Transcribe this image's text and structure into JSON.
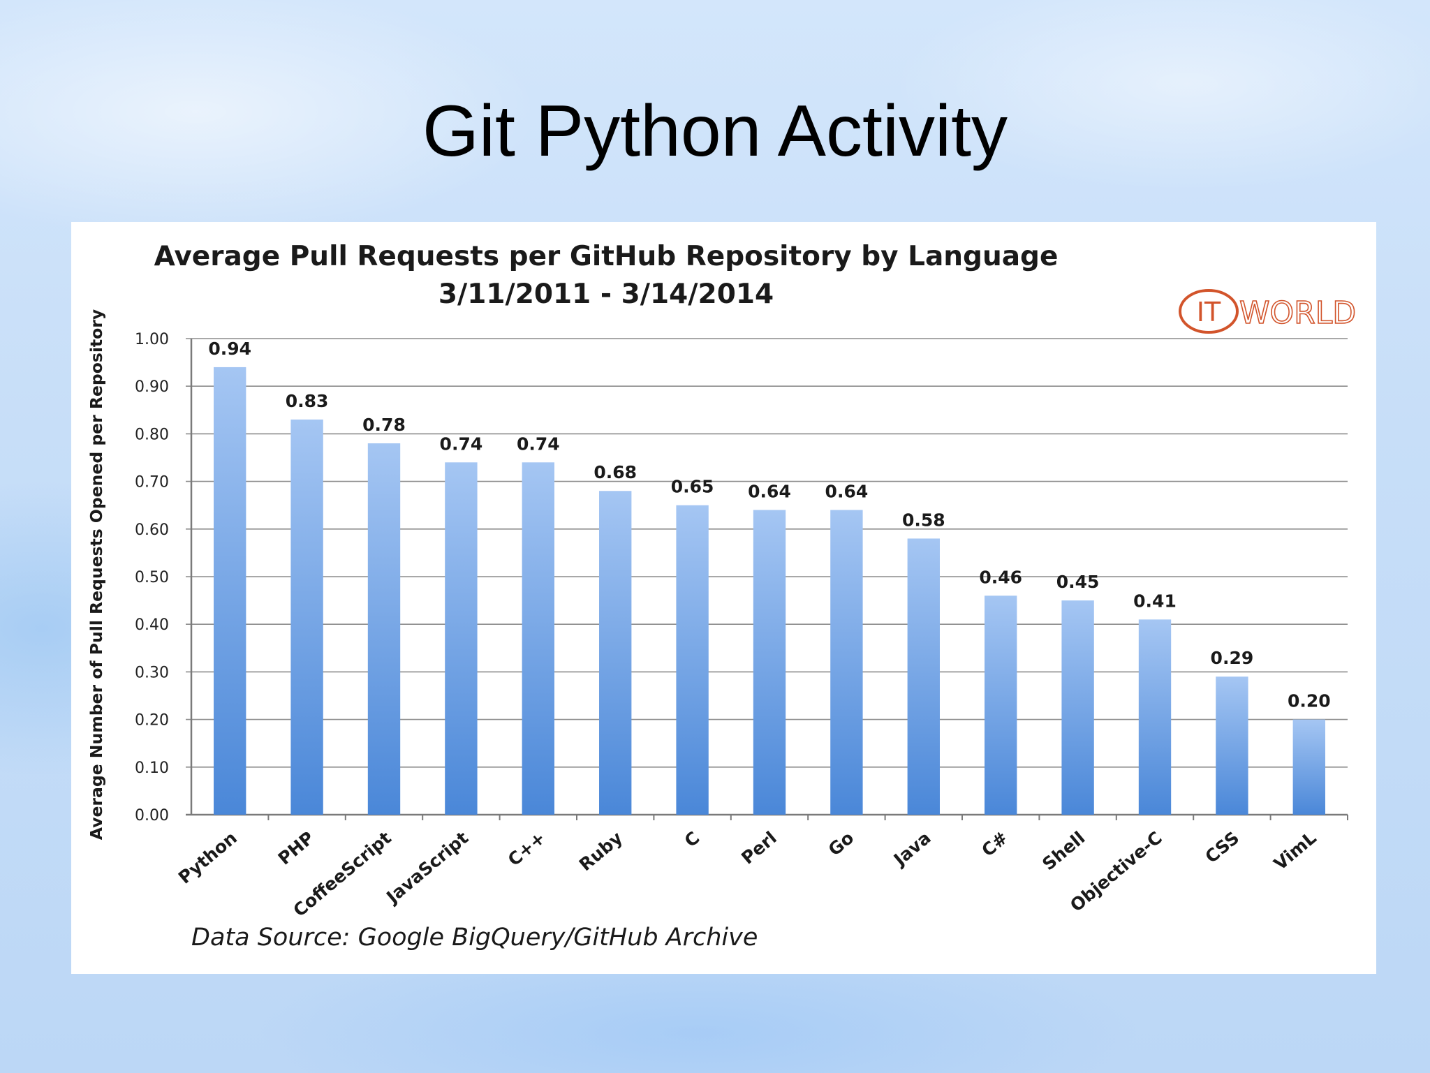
{
  "slide": {
    "title": "Git Python Activity"
  },
  "logo": {
    "it": "IT",
    "world": "WORLD",
    "color": "#d2542b"
  },
  "chart_data": {
    "type": "bar",
    "title": "Average Pull Requests per GitHub Repository by Language",
    "subtitle": "3/11/2011 - 3/14/2014",
    "xlabel": "",
    "ylabel": "Average Number of Pull Requests Opened per Repository",
    "ylim": [
      0,
      1.0
    ],
    "yticks": [
      "0.00",
      "0.10",
      "0.20",
      "0.30",
      "0.40",
      "0.50",
      "0.60",
      "0.70",
      "0.80",
      "0.90",
      "1.00"
    ],
    "grid": true,
    "categories": [
      "Python",
      "PHP",
      "CoffeeScript",
      "JavaScript",
      "C++",
      "Ruby",
      "C",
      "Perl",
      "Go",
      "Java",
      "C#",
      "Shell",
      "Objective-C",
      "CSS",
      "VimL"
    ],
    "values": [
      0.94,
      0.83,
      0.78,
      0.74,
      0.74,
      0.68,
      0.65,
      0.64,
      0.64,
      0.58,
      0.46,
      0.45,
      0.41,
      0.29,
      0.2
    ],
    "value_labels": [
      "0.94",
      "0.83",
      "0.78",
      "0.74",
      "0.74",
      "0.68",
      "0.65",
      "0.64",
      "0.64",
      "0.58",
      "0.46",
      "0.45",
      "0.41",
      "0.29",
      "0.20"
    ],
    "source": "Data Source: Google BigQuery/GitHub Archive",
    "bar_color_top": "#a5c6f3",
    "bar_color_bottom": "#4a87d8"
  }
}
